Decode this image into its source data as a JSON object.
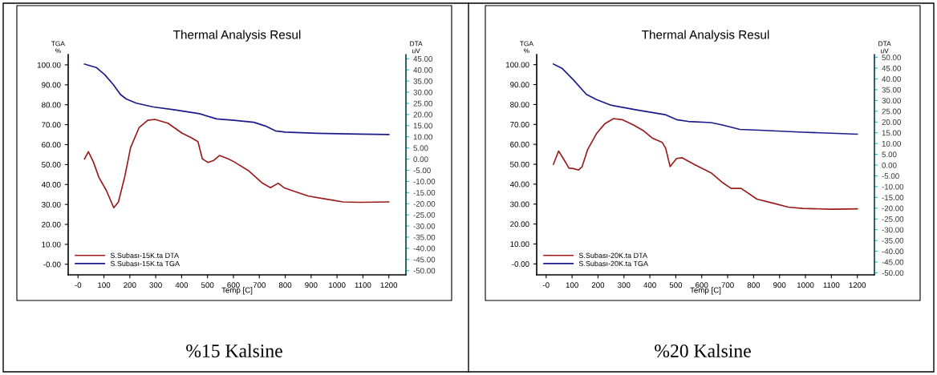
{
  "chart_data": [
    {
      "type": "line",
      "title": "Thermal Analysis Resul",
      "xlabel": "Temp [C]",
      "ylabel": "TGA\n%",
      "y2label": "DTA\nuV",
      "legend": "bottom left",
      "grid": false,
      "marker": "none",
      "line_style": "solid",
      "xlim": [
        -38,
        1266
      ],
      "xticks": [
        {
          "value": 0,
          "label": "-0"
        },
        100,
        200,
        300,
        400,
        500,
        600,
        700,
        800,
        900,
        1000,
        1100,
        1200
      ],
      "ylim": [
        -5.3,
        105.2
      ],
      "yticks": [
        {
          "value": 0,
          "label": "-0.00"
        },
        {
          "value": 10,
          "label": "10.00"
        },
        {
          "value": 20,
          "label": "20.00"
        },
        {
          "value": 30,
          "label": "30.00"
        },
        {
          "value": 40,
          "label": "40.00"
        },
        {
          "value": 50,
          "label": "50.00"
        },
        {
          "value": 60,
          "label": "60.00"
        },
        {
          "value": 70,
          "label": "70.00"
        },
        {
          "value": 80,
          "label": "80.00"
        },
        {
          "value": 90,
          "label": "90.00"
        },
        {
          "value": 100,
          "label": "100.00"
        }
      ],
      "y2lim": [
        -51.9,
        46.9
      ],
      "y2ticks": [
        {
          "value": -50,
          "label": "-50.00"
        },
        {
          "value": -45,
          "label": "-45.00"
        },
        {
          "value": -40,
          "label": "-40.00"
        },
        {
          "value": -35,
          "label": "-35.00"
        },
        {
          "value": -30,
          "label": "-30.00"
        },
        {
          "value": -25,
          "label": "-25.00"
        },
        {
          "value": -20,
          "label": "-20.00"
        },
        {
          "value": -15,
          "label": "-15.00"
        },
        {
          "value": -10,
          "label": "-10.00"
        },
        {
          "value": -5,
          "label": "-5.00"
        },
        {
          "value": 0,
          "label": "0.00"
        },
        {
          "value": 5,
          "label": "5.00"
        },
        {
          "value": 10,
          "label": "10.00"
        },
        {
          "value": 15,
          "label": "15.00"
        },
        {
          "value": 20,
          "label": "20.00"
        },
        {
          "value": 25,
          "label": "25.00"
        },
        {
          "value": 30,
          "label": "30.00"
        },
        {
          "value": 35,
          "label": "35.00"
        },
        {
          "value": 40,
          "label": "40.00"
        },
        {
          "value": 45,
          "label": "45.00"
        }
      ],
      "annotations": [
        "%15 Kalsine"
      ],
      "series": [
        {
          "name": "S.Subası-15K.ta DTA",
          "color": "#9b1b1b",
          "axis": "y2",
          "x": [
            25,
            40,
            59,
            81,
            109,
            138,
            156,
            181,
            203,
            236,
            269,
            297,
            347,
            402,
            435,
            463,
            480,
            502,
            524,
            546,
            580,
            602,
            657,
            712,
            743,
            773,
            795,
            823,
            890,
            956,
            1023,
            1089,
            1200
          ],
          "values": [
            0.1,
            3.3,
            -1.2,
            -8.3,
            -14,
            -21.8,
            -19.2,
            -7.6,
            5.2,
            14.2,
            17.4,
            17.8,
            16.1,
            11.6,
            9.7,
            7.8,
            0.1,
            -1.5,
            -0.6,
            1.6,
            0.1,
            -1.2,
            -5.1,
            -10.8,
            -12.8,
            -10.8,
            -12.8,
            -14,
            -16.6,
            -17.9,
            -19.2,
            -19.4,
            -19.2
          ]
        },
        {
          "name": "S.Subası-15K.ta TGA",
          "color": "#1a1a8c",
          "x": [
            25,
            70,
            103,
            136,
            164,
            186,
            225,
            291,
            369,
            469,
            535,
            602,
            679,
            724,
            762,
            801,
            923,
            1089,
            1200
          ],
          "values": [
            100.4,
            98.7,
            95.1,
            90.1,
            85.1,
            82.9,
            80.8,
            78.9,
            77.5,
            75.5,
            72.9,
            72.2,
            71.2,
            69.3,
            66.9,
            66.3,
            65.7,
            65.3,
            65.1
          ]
        }
      ]
    },
    {
      "type": "line",
      "title": "Thermal Analysis Resul",
      "xlabel": "Temp [C]",
      "ylabel": "TGA\n%",
      "y2label": "DTA\nuV",
      "legend": "bottom left",
      "grid": false,
      "marker": "none",
      "line_style": "solid",
      "xlim": [
        -36.5,
        1266
      ],
      "xticks": [
        {
          "value": 0,
          "label": "-0"
        },
        100,
        200,
        300,
        400,
        500,
        600,
        700,
        800,
        900,
        1000,
        1100,
        1200
      ],
      "ylim": [
        -5.5,
        105.1
      ],
      "yticks": [
        {
          "value": 0,
          "label": "-0.00"
        },
        {
          "value": 10,
          "label": "10.00"
        },
        {
          "value": 20,
          "label": "20.00"
        },
        {
          "value": 30,
          "label": "30.00"
        },
        {
          "value": 40,
          "label": "40.00"
        },
        {
          "value": 50,
          "label": "50.00"
        },
        {
          "value": 60,
          "label": "60.00"
        },
        {
          "value": 70,
          "label": "70.00"
        },
        {
          "value": 80,
          "label": "80.00"
        },
        {
          "value": 90,
          "label": "90.00"
        },
        {
          "value": 100,
          "label": "100.00"
        }
      ],
      "y2lim": [
        -50.95,
        51.35
      ],
      "y2ticks": [
        {
          "value": -50,
          "label": "-50.00"
        },
        {
          "value": -45,
          "label": "-45.00"
        },
        {
          "value": -40,
          "label": "-40.00"
        },
        {
          "value": -35,
          "label": "-35.00"
        },
        {
          "value": -30,
          "label": "-30.00"
        },
        {
          "value": -25,
          "label": "-25.00"
        },
        {
          "value": -20,
          "label": "-20.00"
        },
        {
          "value": -15,
          "label": "-15.00"
        },
        {
          "value": -10,
          "label": "-10.00"
        },
        {
          "value": -5,
          "label": "-5.00"
        },
        {
          "value": 0,
          "label": "0.00"
        },
        {
          "value": 5,
          "label": "5.00"
        },
        {
          "value": 10,
          "label": "10.00"
        },
        {
          "value": 15,
          "label": "15.00"
        },
        {
          "value": 20,
          "label": "20.00"
        },
        {
          "value": 25,
          "label": "25.00"
        },
        {
          "value": 30,
          "label": "30.00"
        },
        {
          "value": 35,
          "label": "35.00"
        },
        {
          "value": 40,
          "label": "40.00"
        },
        {
          "value": 45,
          "label": "45.00"
        },
        {
          "value": 50,
          "label": "50.00"
        }
      ],
      "annotations": [
        "%20 Kalsine"
      ],
      "series": [
        {
          "name": "S.Subası-20K.ta DTA",
          "color": "#9b1b1b",
          "axis": "y2",
          "x": [
            28,
            48,
            66,
            88,
            105,
            125,
            138,
            160,
            194,
            227,
            260,
            293,
            337,
            376,
            409,
            448,
            461,
            478,
            503,
            525,
            570,
            636,
            680,
            713,
            752,
            813,
            879,
            934,
            990,
            1101,
            1200
          ],
          "values": [
            0.4,
            6.5,
            3.1,
            -1.4,
            -1.6,
            -2.3,
            -0.9,
            7.2,
            14.6,
            19.3,
            21.6,
            21.1,
            18.6,
            15.9,
            12.6,
            10.5,
            7.8,
            -0.7,
            3.1,
            3.4,
            0.4,
            -3.6,
            -8.1,
            -10.8,
            -10.8,
            -15.8,
            -17.8,
            -19.5,
            -20.1,
            -20.5,
            -20.3
          ]
        },
        {
          "name": "S.Subası-20K.ta TGA",
          "color": "#1a1a8c",
          "x": [
            28,
            61,
            105,
            155,
            194,
            249,
            348,
            459,
            503,
            548,
            636,
            680,
            747,
            824,
            990,
            1200
          ],
          "values": [
            100.3,
            98.2,
            92.4,
            85.1,
            82.5,
            79.7,
            77.3,
            74.9,
            72.4,
            71.5,
            70.9,
            69.7,
            67.5,
            67.1,
            66.1,
            65.1
          ]
        }
      ]
    }
  ]
}
